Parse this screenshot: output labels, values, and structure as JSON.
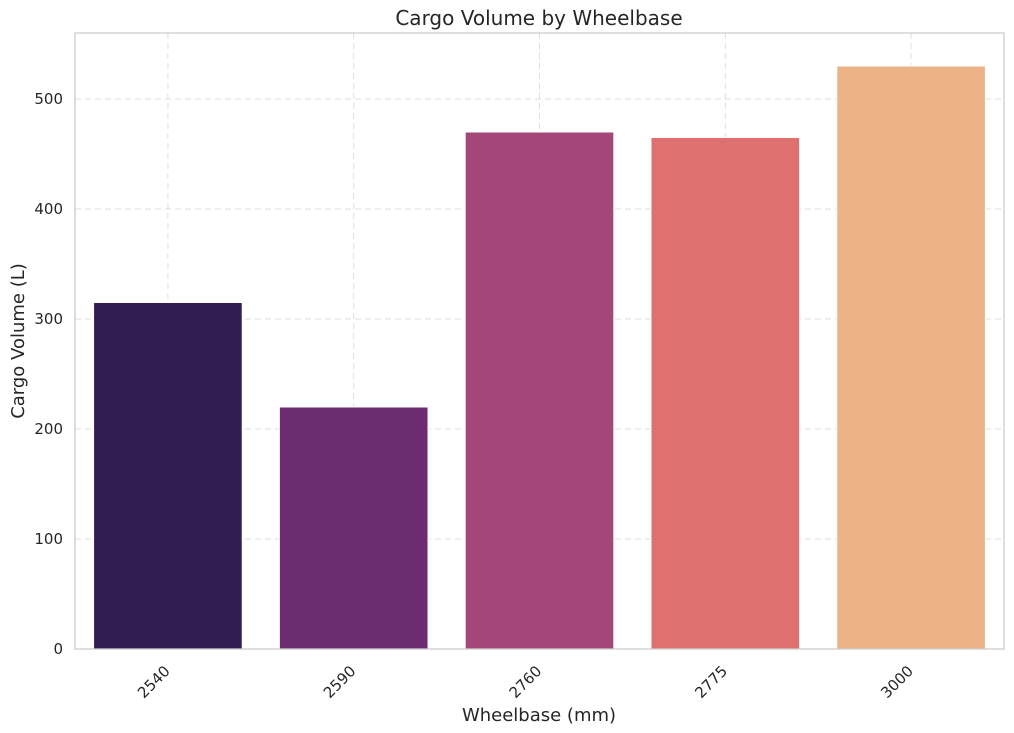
{
  "chart_data": {
    "type": "bar",
    "title": "Cargo Volume by Wheelbase",
    "xlabel": "Wheelbase (mm)",
    "ylabel": "Cargo Volume (L)",
    "categories": [
      "2540",
      "2590",
      "2760",
      "2775",
      "3000"
    ],
    "values": [
      315,
      220,
      470,
      465,
      530
    ],
    "colors": [
      "#311c54",
      "#6b2c72",
      "#a44778",
      "#de716f",
      "#edb387"
    ],
    "ylim": [
      0,
      560
    ],
    "yticks": [
      0,
      100,
      200,
      300,
      400,
      500
    ],
    "grid": true,
    "legend": "none"
  }
}
